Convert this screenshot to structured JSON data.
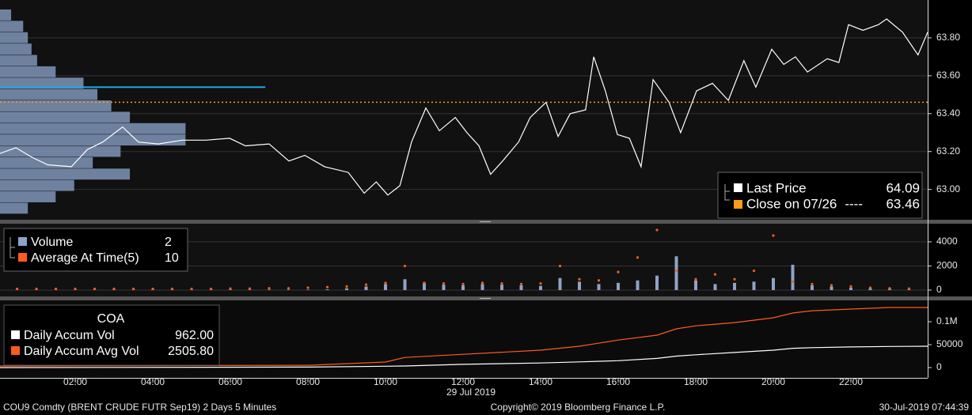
{
  "chart_data": [
    {
      "type": "line",
      "xlim": [
        0.06,
        23.98
      ],
      "ylim": [
        62.84,
        64.0
      ],
      "yticks": [
        {
          "value": 63.0,
          "label": "63.00"
        },
        {
          "value": 63.2,
          "label": "63.20"
        },
        {
          "value": 63.4,
          "label": "63.40"
        },
        {
          "value": 63.6,
          "label": "63.60"
        },
        {
          "value": 63.8,
          "label": "63.80"
        }
      ],
      "grid": true,
      "x": [
        0.06,
        0.47,
        0.88,
        1.29,
        1.9,
        2.31,
        2.71,
        3.22,
        3.63,
        4.14,
        4.76,
        5.37,
        5.98,
        6.39,
        7.0,
        7.51,
        7.92,
        8.43,
        9.04,
        9.45,
        9.76,
        10.06,
        10.37,
        10.67,
        11.04,
        11.39,
        11.8,
        12.1,
        12.41,
        12.71,
        13.02,
        13.43,
        13.73,
        14.14,
        14.45,
        14.76,
        15.16,
        15.37,
        15.67,
        15.98,
        16.29,
        16.59,
        16.9,
        17.31,
        17.61,
        18.02,
        18.43,
        18.84,
        19.24,
        19.55,
        19.96,
        20.27,
        20.57,
        20.88,
        21.39,
        21.69,
        21.94,
        22.31,
        22.71,
        22.92,
        23.33,
        23.73,
        23.98
      ],
      "series": [
        {
          "name": "Last Price",
          "color": "#ffffff",
          "legend_value": 64.09,
          "values": [
            63.19,
            63.22,
            63.17,
            63.13,
            63.12,
            63.21,
            63.25,
            63.33,
            63.25,
            63.24,
            63.26,
            63.26,
            63.27,
            63.23,
            63.24,
            63.15,
            63.18,
            63.12,
            63.09,
            62.98,
            63.04,
            62.97,
            63.02,
            63.25,
            63.43,
            63.31,
            63.38,
            63.3,
            63.23,
            63.08,
            63.15,
            63.25,
            63.38,
            63.46,
            63.28,
            63.4,
            63.42,
            63.7,
            63.52,
            63.29,
            63.27,
            63.12,
            63.58,
            63.46,
            63.3,
            63.52,
            63.56,
            63.47,
            63.68,
            63.54,
            63.74,
            63.66,
            63.7,
            63.62,
            63.69,
            63.67,
            63.87,
            63.84,
            63.87,
            63.9,
            63.83,
            63.71,
            63.83
          ]
        },
        {
          "name": "Close on 07/26",
          "color": "#ff9a1a",
          "dashes": "----",
          "value": 63.46
        }
      ],
      "profile": {
        "color": "#7f95b8",
        "xlim": [
          0,
          1000
        ],
        "prices": [
          63.92,
          63.86,
          63.8,
          63.74,
          63.68,
          63.62,
          63.56,
          63.5,
          63.44,
          63.38,
          63.32,
          63.26,
          63.2,
          63.14,
          63.08,
          63.02,
          62.96,
          62.9
        ],
        "values": [
          12,
          25,
          30,
          34,
          40,
          60,
          90,
          105,
          120,
          140,
          200,
          200,
          130,
          100,
          140,
          80,
          60,
          30
        ]
      },
      "poc": {
        "value": 63.54,
        "length": 286,
        "color": "#1ea7e1"
      }
    },
    {
      "type": "bar",
      "xlim": [
        0.06,
        23.98
      ],
      "ylim": [
        -525,
        5500
      ],
      "yticks": [
        0,
        2000,
        4000
      ],
      "grid": true,
      "x": [
        0.5,
        1,
        1.5,
        2,
        2.5,
        3,
        3.5,
        4,
        4.5,
        5,
        5.5,
        6,
        6.5,
        7,
        7.5,
        8,
        8.5,
        9,
        9.5,
        10,
        10.5,
        11,
        11.5,
        12,
        12.5,
        13,
        13.5,
        14,
        14.5,
        15,
        15.5,
        16,
        16.5,
        17,
        17.5,
        18,
        18.5,
        19,
        19.5,
        20,
        20.5,
        21,
        21.5,
        22,
        22.5,
        23,
        23.5
      ],
      "series": [
        {
          "name": "Volume",
          "color": "#8ea3c6",
          "legend_value": 2,
          "values": [
            20,
            20,
            20,
            20,
            20,
            30,
            30,
            30,
            30,
            30,
            40,
            40,
            30,
            30,
            30,
            40,
            60,
            150,
            300,
            500,
            900,
            600,
            450,
            400,
            500,
            450,
            400,
            350,
            1000,
            700,
            500,
            600,
            800,
            1200,
            2800,
            800,
            500,
            600,
            700,
            1000,
            2100,
            400,
            300,
            200,
            150,
            100,
            50
          ]
        },
        {
          "name": "Average At Time(5)",
          "color": "#ff5a1f",
          "legend_value": 10,
          "style": "dots",
          "values": [
            100,
            100,
            100,
            100,
            100,
            100,
            100,
            100,
            100,
            100,
            100,
            120,
            120,
            150,
            150,
            200,
            250,
            300,
            450,
            600,
            2000,
            600,
            550,
            500,
            600,
            550,
            500,
            550,
            2000,
            900,
            800,
            1500,
            2700,
            4980,
            1600,
            900,
            1300,
            900,
            1600,
            4520,
            700,
            500,
            400,
            300,
            200,
            150,
            120
          ]
        }
      ]
    },
    {
      "type": "line",
      "title": "COA",
      "xlim": [
        0.06,
        23.98
      ],
      "ylim": [
        -22400,
        146500
      ],
      "yticks": [
        0,
        50000,
        {
          "value": 100000,
          "label": "0.1M"
        }
      ],
      "xticks": [
        {
          "value": 2,
          "label": "02:00"
        },
        {
          "value": 4,
          "label": "04:00"
        },
        {
          "value": 6,
          "label": "06:00"
        },
        {
          "value": 8,
          "label": "08:00"
        },
        {
          "value": 10,
          "label": "10:00"
        },
        {
          "value": 12,
          "label": "12:00"
        },
        {
          "value": 14,
          "label": "14:00"
        },
        {
          "value": 16,
          "label": "16:00"
        },
        {
          "value": 18,
          "label": "18:00"
        },
        {
          "value": 20,
          "label": "20:00"
        },
        {
          "value": 22,
          "label": "22:00"
        }
      ],
      "x_date_label": "29 Jul 2019",
      "grid": false,
      "x": [
        0.06,
        8,
        10,
        10.5,
        12,
        14,
        15,
        16,
        17,
        17.5,
        18,
        19,
        20,
        20.5,
        21,
        22,
        23,
        23.98
      ],
      "series": [
        {
          "name": "Daily Accum Vol",
          "color": "#ffffff",
          "legend_value": "962.00",
          "values": [
            0,
            1000,
            3000,
            3500,
            7000,
            10000,
            12500,
            15000,
            20000,
            25000,
            28000,
            33000,
            38000,
            42000,
            43500,
            45000,
            46000,
            46500
          ]
        },
        {
          "name": "Daily Accum Avg Vol",
          "color": "#ff5a1f",
          "legend_value": "2505.80",
          "values": [
            3400,
            5000,
            12000,
            22000,
            29000,
            38000,
            46500,
            60000,
            70700,
            84500,
            91000,
            98000,
            108600,
            119000,
            124000,
            127600,
            131000,
            131000
          ]
        }
      ]
    }
  ],
  "footer": {
    "security": "COU9 Comdty (BRENT CRUDE FUTR  Sep19) 2 Days 5 Minutes",
    "copyright": "Copyright© 2019 Bloomberg Finance L.P.",
    "timestamp": "30-Jul-2019 07:44:39"
  }
}
